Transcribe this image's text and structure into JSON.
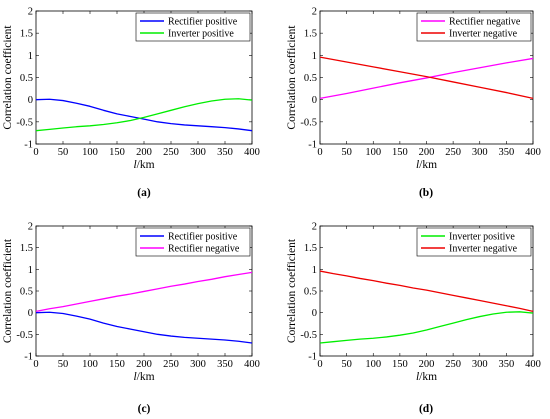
{
  "chart_data": [
    {
      "type": "line",
      "panel_label": "(a)",
      "xlabel_italic": "l",
      "xlabel_rest": "/km",
      "ylabel": "Correlation coefficient",
      "xlim": [
        0,
        400
      ],
      "ylim": [
        -1,
        2
      ],
      "xticks": [
        "0",
        "50",
        "100",
        "150",
        "200",
        "250",
        "300",
        "350",
        "400"
      ],
      "yticks": [
        "-1",
        "-0.5",
        "0",
        "0.5",
        "1",
        "1.5",
        "2"
      ],
      "grid": false,
      "legend_position": "top-right",
      "x": [
        0,
        25,
        50,
        75,
        100,
        125,
        150,
        175,
        200,
        225,
        250,
        275,
        300,
        325,
        350,
        375,
        400
      ],
      "series": [
        {
          "name": "Rectifier positive",
          "color": "#0000ff",
          "values": [
            0.0,
            0.01,
            -0.02,
            -0.08,
            -0.15,
            -0.24,
            -0.32,
            -0.38,
            -0.44,
            -0.5,
            -0.54,
            -0.57,
            -0.59,
            -0.61,
            -0.63,
            -0.66,
            -0.7
          ]
        },
        {
          "name": "Inverter positive",
          "color": "#00ee00",
          "values": [
            -0.7,
            -0.67,
            -0.64,
            -0.61,
            -0.59,
            -0.56,
            -0.52,
            -0.47,
            -0.4,
            -0.32,
            -0.24,
            -0.16,
            -0.09,
            -0.03,
            0.01,
            0.02,
            -0.01
          ]
        }
      ]
    },
    {
      "type": "line",
      "panel_label": "(b)",
      "xlabel_italic": "l",
      "xlabel_rest": "/km",
      "ylabel": "Correlation coefficient",
      "xlim": [
        0,
        400
      ],
      "ylim": [
        -1,
        2
      ],
      "xticks": [
        "0",
        "50",
        "100",
        "150",
        "200",
        "250",
        "300",
        "350",
        "400"
      ],
      "yticks": [
        "-1",
        "-0.5",
        "0",
        "0.5",
        "1",
        "1.5",
        "2"
      ],
      "grid": false,
      "legend_position": "top-right",
      "x": [
        0,
        50,
        100,
        150,
        200,
        250,
        300,
        350,
        400
      ],
      "series": [
        {
          "name": "Rectifier negative",
          "color": "#ff00ff",
          "values": [
            0.03,
            0.14,
            0.26,
            0.38,
            0.49,
            0.61,
            0.72,
            0.83,
            0.93
          ]
        },
        {
          "name": "Inverter negative",
          "color": "#ee0000",
          "values": [
            0.96,
            0.85,
            0.74,
            0.63,
            0.52,
            0.4,
            0.28,
            0.16,
            0.03
          ]
        }
      ]
    },
    {
      "type": "line",
      "panel_label": "(c)",
      "xlabel_italic": "l",
      "xlabel_rest": "/km",
      "ylabel": "Correlation coefficient",
      "xlim": [
        0,
        400
      ],
      "ylim": [
        -1,
        2
      ],
      "xticks": [
        "0",
        "50",
        "100",
        "150",
        "200",
        "250",
        "300",
        "350",
        "400"
      ],
      "yticks": [
        "-1",
        "-0.5",
        "0",
        "0.5",
        "1",
        "1.5",
        "2"
      ],
      "grid": false,
      "legend_position": "top-right",
      "x": [
        0,
        25,
        50,
        75,
        100,
        125,
        150,
        175,
        200,
        225,
        250,
        275,
        300,
        325,
        350,
        375,
        400
      ],
      "series": [
        {
          "name": "Rectifier positive",
          "color": "#0000ff",
          "values": [
            0.0,
            0.01,
            -0.02,
            -0.08,
            -0.15,
            -0.24,
            -0.32,
            -0.38,
            -0.44,
            -0.5,
            -0.54,
            -0.57,
            -0.59,
            -0.61,
            -0.63,
            -0.66,
            -0.7
          ]
        },
        {
          "name": "Rectifier negative",
          "color": "#ff00ff",
          "values": [
            0.03,
            0.09,
            0.14,
            0.2,
            0.26,
            0.32,
            0.38,
            0.43,
            0.49,
            0.55,
            0.61,
            0.66,
            0.72,
            0.77,
            0.83,
            0.88,
            0.93
          ]
        }
      ]
    },
    {
      "type": "line",
      "panel_label": "(d)",
      "xlabel_italic": "l",
      "xlabel_rest": "/km",
      "ylabel": "Correlation coefficient",
      "xlim": [
        0,
        400
      ],
      "ylim": [
        -1,
        2
      ],
      "xticks": [
        "0",
        "50",
        "100",
        "150",
        "200",
        "250",
        "300",
        "350",
        "400"
      ],
      "yticks": [
        "-1",
        "-0.5",
        "0",
        "0.5",
        "1",
        "1.5",
        "2"
      ],
      "grid": false,
      "legend_position": "top-right",
      "x": [
        0,
        25,
        50,
        75,
        100,
        125,
        150,
        175,
        200,
        225,
        250,
        275,
        300,
        325,
        350,
        375,
        400
      ],
      "series": [
        {
          "name": "Inverter positive",
          "color": "#00ee00",
          "values": [
            -0.7,
            -0.67,
            -0.64,
            -0.61,
            -0.59,
            -0.56,
            -0.52,
            -0.47,
            -0.4,
            -0.32,
            -0.24,
            -0.16,
            -0.09,
            -0.03,
            0.01,
            0.02,
            -0.01
          ]
        },
        {
          "name": "Inverter negative",
          "color": "#ee0000",
          "values": [
            0.96,
            0.9,
            0.85,
            0.79,
            0.74,
            0.68,
            0.63,
            0.57,
            0.52,
            0.46,
            0.4,
            0.34,
            0.28,
            0.22,
            0.16,
            0.1,
            0.03
          ]
        }
      ]
    }
  ]
}
